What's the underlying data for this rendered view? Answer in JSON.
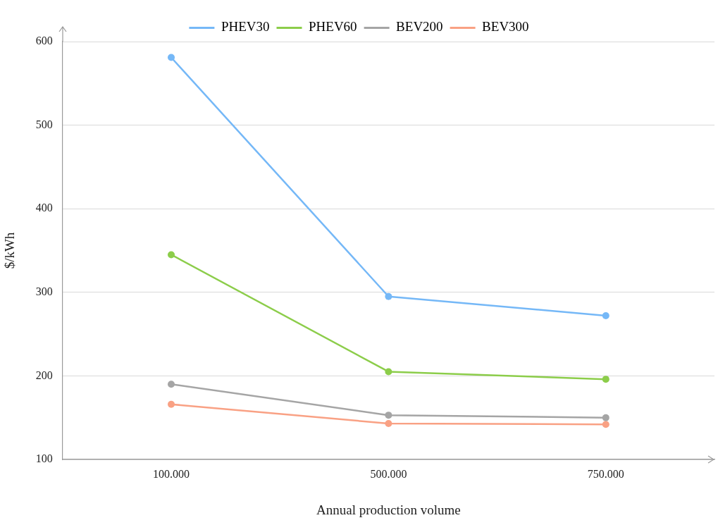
{
  "chart_data": {
    "type": "line",
    "xlabel": "Annual production volume",
    "ylabel": "$/kWh",
    "categories": [
      "100.000",
      "500.000",
      "750.000"
    ],
    "series": [
      {
        "name": "PHEV30",
        "color": "#75b8f7",
        "values": [
          581,
          295,
          272
        ]
      },
      {
        "name": "PHEV60",
        "color": "#8ccd4a",
        "values": [
          345,
          205,
          196
        ]
      },
      {
        "name": "BEV200",
        "color": "#a5a5a5",
        "values": [
          190,
          153,
          150
        ]
      },
      {
        "name": "BEV300",
        "color": "#f9a184",
        "values": [
          166,
          143,
          142
        ]
      }
    ],
    "ylim": [
      100,
      600
    ],
    "yticks": [
      100,
      200,
      300,
      400,
      500,
      600
    ],
    "grid": "y",
    "legend": "top",
    "marker": "circle",
    "line_style": "solid"
  }
}
